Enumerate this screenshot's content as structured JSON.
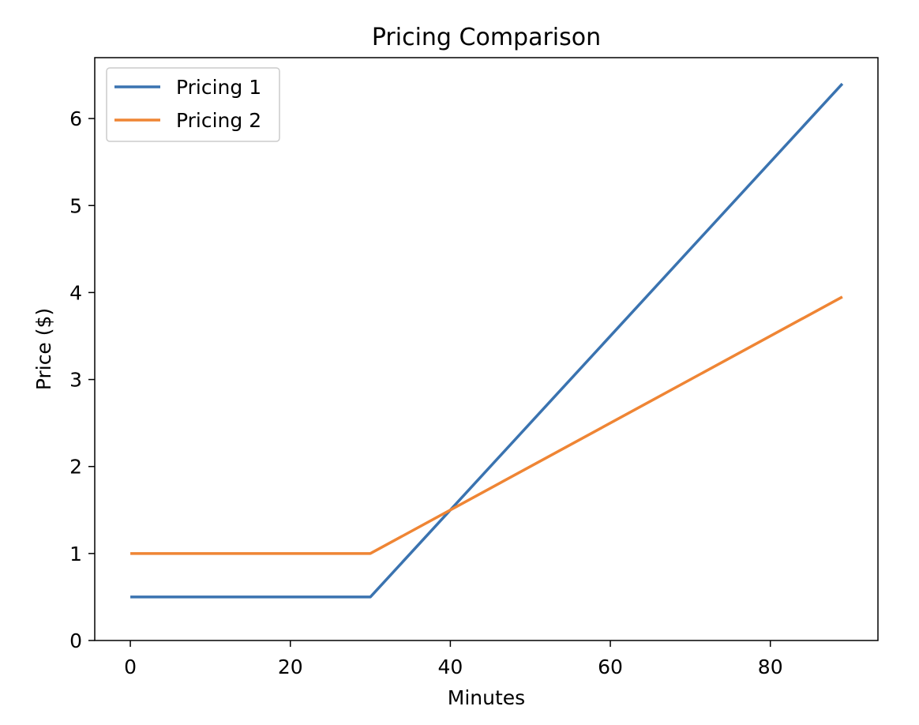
{
  "chart_data": {
    "type": "line",
    "title": "Pricing Comparison",
    "xlabel": "Minutes",
    "ylabel": "Price ($)",
    "xlim": [
      -4.45,
      93.45
    ],
    "ylim": [
      0,
      6.7
    ],
    "xticks": [
      0,
      20,
      40,
      60,
      80
    ],
    "yticks": [
      0,
      1,
      2,
      3,
      4,
      5,
      6
    ],
    "grid": false,
    "legend_position": "upper-left",
    "series": [
      {
        "name": "Pricing 1",
        "color": "#3a73b0",
        "points": [
          [
            0,
            0.5
          ],
          [
            30,
            0.5
          ],
          [
            89,
            6.4
          ]
        ]
      },
      {
        "name": "Pricing 2",
        "color": "#ef8534",
        "points": [
          [
            0,
            1.0
          ],
          [
            30,
            1.0
          ],
          [
            89,
            3.95
          ]
        ]
      }
    ]
  }
}
